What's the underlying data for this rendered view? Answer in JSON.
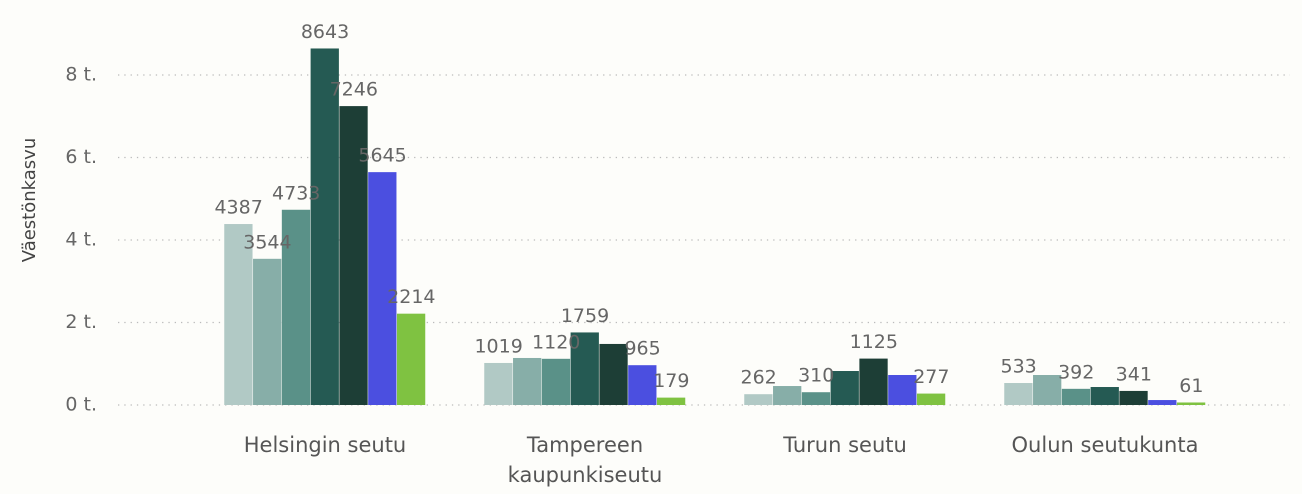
{
  "chart_data": {
    "type": "bar",
    "y_label": "Väestönkasvu",
    "categories": [
      "Helsingin seutu",
      "Tampereen kaupunkiseutu",
      "Turun seutu",
      "Oulun seutukunta"
    ],
    "series": [
      {
        "color": "#b1c9c5",
        "values": [
          4387,
          1019,
          262,
          533
        ],
        "value_labels": [
          "4387",
          "1019",
          "262",
          "533"
        ]
      },
      {
        "color": "#87aea8",
        "values": [
          3544,
          1140,
          460,
          727
        ],
        "value_labels": [
          "3544",
          null,
          null,
          null
        ]
      },
      {
        "color": "#5a9188",
        "values": [
          4733,
          1120,
          310,
          392
        ],
        "value_labels": [
          "4733",
          "1120",
          "310",
          "392"
        ]
      },
      {
        "color": "#255a53",
        "values": [
          8643,
          1759,
          824,
          436
        ],
        "value_labels": [
          "8643",
          "1759",
          null,
          null
        ]
      },
      {
        "color": "#1d3e36",
        "values": [
          7246,
          1480,
          1125,
          341
        ],
        "value_labels": [
          "7246",
          null,
          "1125",
          "341"
        ]
      },
      {
        "color": "#4b4fe0",
        "values": [
          5645,
          965,
          727,
          120
        ],
        "value_labels": [
          "5645",
          "965",
          null,
          null
        ]
      },
      {
        "color": "#7fc241",
        "values": [
          2214,
          179,
          277,
          61
        ],
        "value_labels": [
          "2214",
          "179",
          "277",
          "61"
        ]
      }
    ],
    "ylim": [
      0,
      9000
    ],
    "yticks": [
      {
        "value": 0,
        "label": "0 t."
      },
      {
        "value": 2000,
        "label": "2 t."
      },
      {
        "value": 4000,
        "label": "4 t."
      },
      {
        "value": 6000,
        "label": "6 t."
      },
      {
        "value": 8000,
        "label": "8 t."
      }
    ],
    "grid": true
  }
}
